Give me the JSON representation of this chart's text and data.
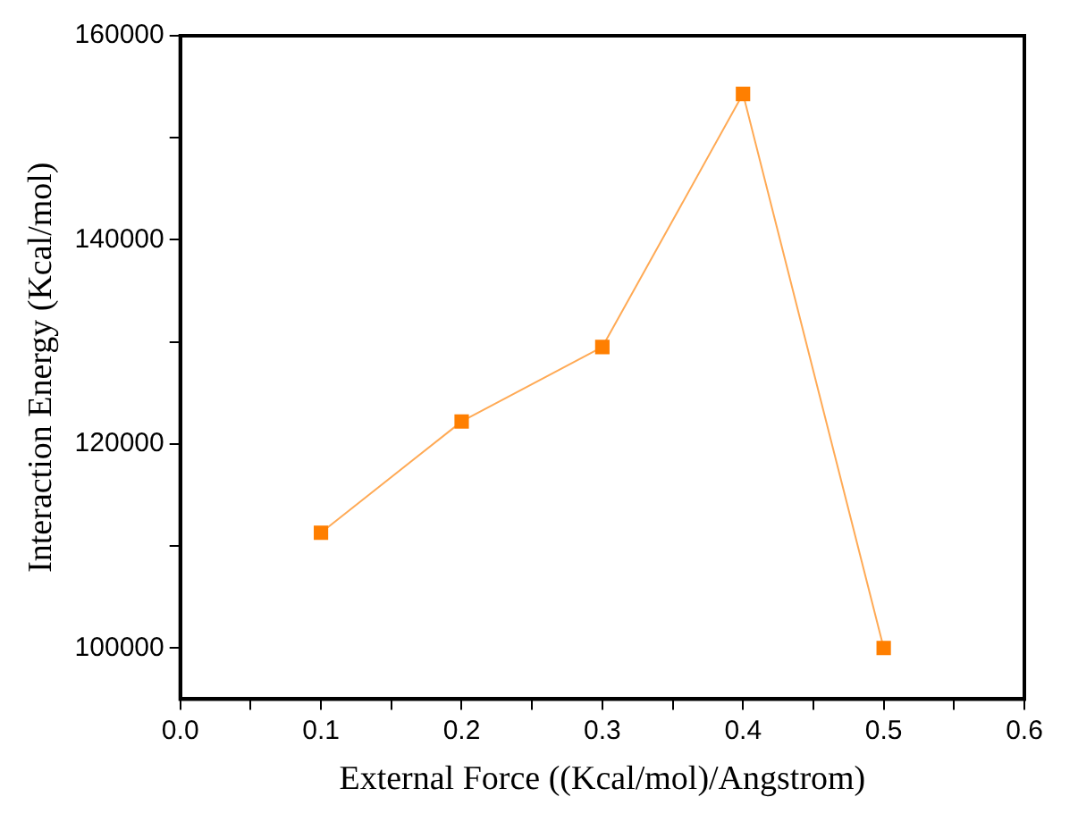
{
  "chart_data": {
    "type": "line",
    "xlabel": "External Force ((Kcal/mol)/Angstrom)",
    "ylabel": "Interaction Energy (Kcal/mol)",
    "x": [
      0.1,
      0.2,
      0.3,
      0.4,
      0.5
    ],
    "series": [
      {
        "color": "#ff7f00",
        "values": [
          111300,
          122200,
          129500,
          154300,
          100000
        ]
      }
    ],
    "xlim": [
      0,
      0.6
    ],
    "xticks": [
      {
        "value": 0,
        "label": "0.0"
      },
      {
        "value": 0.05,
        "label": null
      },
      {
        "value": 0.1,
        "label": "0.1"
      },
      {
        "value": 0.15,
        "label": null
      },
      {
        "value": 0.2,
        "label": "0.2"
      },
      {
        "value": 0.25,
        "label": null
      },
      {
        "value": 0.3,
        "label": "0.3"
      },
      {
        "value": 0.35,
        "label": null
      },
      {
        "value": 0.4,
        "label": "0.4"
      },
      {
        "value": 0.45,
        "label": null
      },
      {
        "value": 0.5,
        "label": "0.5"
      },
      {
        "value": 0.55,
        "label": null
      },
      {
        "value": 0.6,
        "label": "0.6"
      }
    ],
    "ylim": [
      95000,
      160000
    ],
    "yticks": [
      100000,
      {
        "value": 110000,
        "label": null
      },
      120000,
      {
        "value": 130000,
        "label": null
      },
      140000,
      {
        "value": 150000,
        "label": null
      },
      160000
    ],
    "marker": "square",
    "line_style": "solid",
    "grid": false,
    "legend": false
  }
}
